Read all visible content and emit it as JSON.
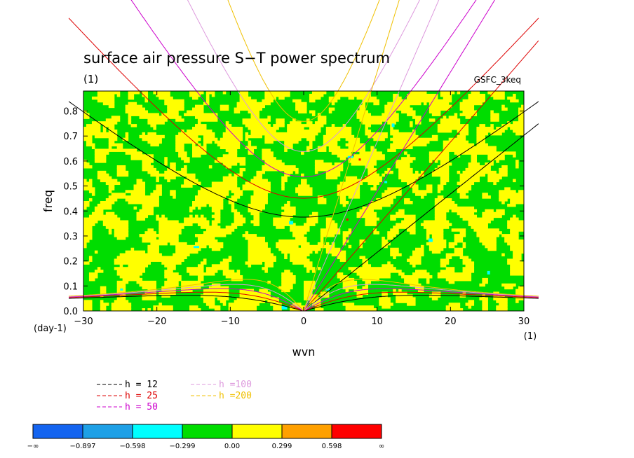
{
  "chart_data": {
    "type": "heatmap",
    "title": "surface air pressure S−T power spectrum",
    "subtitle": "(1)",
    "source_label": "GSFC_3keq",
    "xlabel": "wvn",
    "ylabel": "freq",
    "x_unit_label": "(1)",
    "y_unit_label": "(day-1)",
    "xlim": [
      -30,
      30
    ],
    "ylim": [
      0,
      0.88
    ],
    "x_ticks": [
      -30,
      -20,
      -10,
      0,
      10,
      20,
      30
    ],
    "x_tick_labels": [
      "−30",
      "−20",
      "−10",
      "0",
      "10",
      "20",
      "30"
    ],
    "y_ticks": [
      0,
      0.1,
      0.2,
      0.3,
      0.4,
      0.5,
      0.6,
      0.7,
      0.8
    ],
    "y_tick_labels": [
      "0.0",
      "0.1",
      "0.2",
      "0.3",
      "0.4",
      "0.5",
      "0.6",
      "0.7",
      "0.8"
    ],
    "color_levels": [
      "−∞",
      "−0.897",
      "−0.598",
      "−0.299",
      "0.00",
      "0.299",
      "0.598",
      "∞"
    ],
    "color_bins": [
      "#1464f0",
      "#1ea0e6",
      "#00ffff",
      "#00dd00",
      "#ffff00",
      "#ffa000",
      "#ff0000"
    ],
    "dominant_bins": [
      "#00dd00",
      "#ffff00"
    ],
    "dispersion_curves": [
      {
        "label": "h = 12",
        "h": 12,
        "color": "#000000"
      },
      {
        "label": "h = 25",
        "h": 25,
        "color": "#dd0000"
      },
      {
        "label": "h = 50",
        "h": 50,
        "color": "#cc00cc"
      },
      {
        "label": "h =100",
        "h": 100,
        "color": "#dd99dd"
      },
      {
        "label": "h =200",
        "h": 200,
        "color": "#f0c000"
      }
    ]
  }
}
